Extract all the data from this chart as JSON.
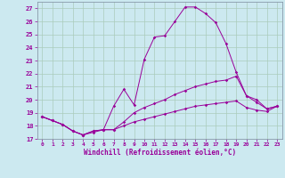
{
  "xlabel": "Windchill (Refroidissement éolien,°C)",
  "background_color": "#cce9f0",
  "grid_color": "#aaccbb",
  "line_color": "#990099",
  "spine_color": "#8899aa",
  "xlim": [
    -0.5,
    23.5
  ],
  "ylim": [
    17,
    27.5
  ],
  "yticks": [
    17,
    18,
    19,
    20,
    21,
    22,
    23,
    24,
    25,
    26,
    27
  ],
  "xticks": [
    0,
    1,
    2,
    3,
    4,
    5,
    6,
    7,
    8,
    9,
    10,
    11,
    12,
    13,
    14,
    15,
    16,
    17,
    18,
    19,
    20,
    21,
    22,
    23
  ],
  "lines": [
    {
      "x": [
        0,
        1,
        2,
        3,
        4,
        5,
        6,
        7,
        8,
        9,
        10,
        11,
        12,
        13,
        14,
        15,
        16,
        17,
        18,
        19,
        20,
        21,
        22,
        23
      ],
      "y": [
        18.7,
        18.4,
        18.1,
        17.6,
        17.3,
        17.6,
        17.7,
        19.5,
        20.8,
        19.6,
        23.1,
        24.8,
        24.9,
        26.0,
        27.1,
        27.1,
        26.6,
        25.9,
        24.3,
        22.1,
        20.3,
        20.0,
        19.3,
        19.5
      ]
    },
    {
      "x": [
        0,
        1,
        2,
        3,
        4,
        5,
        6,
        7,
        8,
        9,
        10,
        11,
        12,
        13,
        14,
        15,
        16,
        17,
        18,
        19,
        20,
        21,
        22,
        23
      ],
      "y": [
        18.7,
        18.4,
        18.1,
        17.6,
        17.3,
        17.6,
        17.7,
        17.7,
        18.3,
        19.0,
        19.4,
        19.7,
        20.0,
        20.4,
        20.7,
        21.0,
        21.2,
        21.4,
        21.5,
        21.8,
        20.3,
        19.8,
        19.3,
        19.5
      ]
    },
    {
      "x": [
        0,
        1,
        2,
        3,
        4,
        5,
        6,
        7,
        8,
        9,
        10,
        11,
        12,
        13,
        14,
        15,
        16,
        17,
        18,
        19,
        20,
        21,
        22,
        23
      ],
      "y": [
        18.7,
        18.4,
        18.1,
        17.6,
        17.3,
        17.5,
        17.7,
        17.7,
        18.0,
        18.3,
        18.5,
        18.7,
        18.9,
        19.1,
        19.3,
        19.5,
        19.6,
        19.7,
        19.8,
        19.9,
        19.4,
        19.2,
        19.1,
        19.5
      ]
    }
  ]
}
